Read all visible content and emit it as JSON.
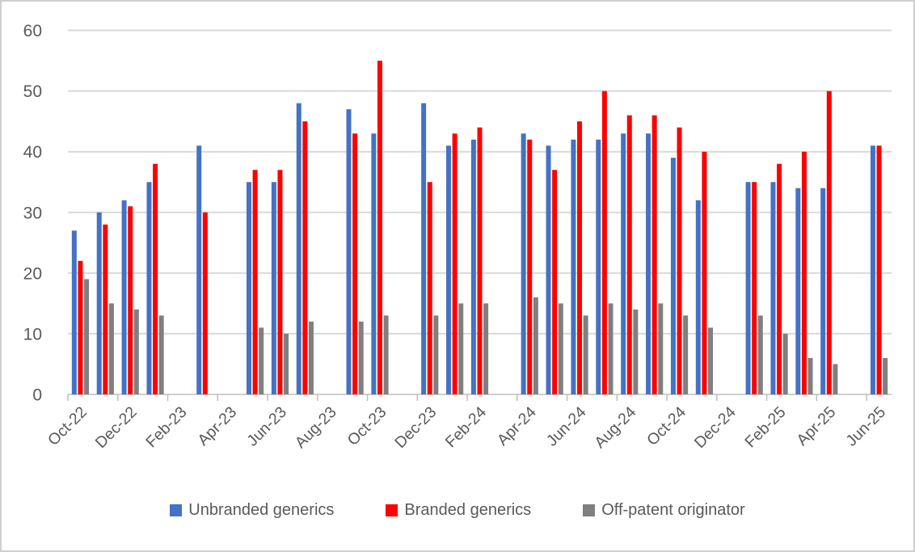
{
  "chart_data": {
    "type": "bar",
    "title": "",
    "xlabel": "",
    "ylabel": "",
    "categories": [
      "Oct-22",
      "Nov-22",
      "Dec-22",
      "Jan-23",
      "Feb-23",
      "Mar-23",
      "Apr-23",
      "May-23",
      "Jun-23",
      "Jul-23",
      "Aug-23",
      "Sep-23",
      "Oct-23",
      "Nov-23",
      "Dec-23",
      "Jan-24",
      "Feb-24",
      "Mar-24",
      "Apr-24",
      "May-24",
      "Jun-24",
      "Jul-24",
      "Aug-24",
      "Sep-24",
      "Oct-24",
      "Nov-24",
      "Dec-24",
      "Jan-25",
      "Feb-25",
      "Mar-25",
      "Apr-25",
      "May-25",
      "Jun-25"
    ],
    "x_tick_labels": [
      "Oct-22",
      "Dec-22",
      "Feb-23",
      "Apr-23",
      "Jun-23",
      "Aug-23",
      "Oct-23",
      "Dec-23",
      "Feb-24",
      "Apr-24",
      "Jun-24",
      "Aug-24",
      "Oct-24",
      "Dec-24",
      "Feb-25",
      "Apr-25",
      "Jun-25"
    ],
    "x_label_interval": 2,
    "y_ticks": [
      0,
      10,
      20,
      30,
      40,
      50,
      60
    ],
    "ylim": [
      0,
      60
    ],
    "grid": true,
    "legend_position": "bottom",
    "axis_text_color": "#595959",
    "gridline_color": "#D9D9D9",
    "axis_line_color": "#BFBFBF",
    "series": [
      {
        "name": "Unbranded generics",
        "color": "#4472C4",
        "values": [
          27,
          30,
          32,
          35,
          null,
          41,
          null,
          35,
          35,
          48,
          null,
          47,
          43,
          null,
          48,
          41,
          42,
          null,
          43,
          41,
          42,
          42,
          43,
          43,
          39,
          32,
          null,
          35,
          35,
          34,
          34,
          null,
          41
        ]
      },
      {
        "name": "Branded generics",
        "color": "#FF0000",
        "values": [
          22,
          28,
          31,
          38,
          null,
          30,
          null,
          37,
          37,
          45,
          null,
          43,
          55,
          null,
          35,
          43,
          44,
          null,
          42,
          37,
          45,
          50,
          46,
          46,
          44,
          40,
          null,
          35,
          38,
          40,
          50,
          null,
          41
        ]
      },
      {
        "name": "Off-patent originator",
        "color": "#7F7F7F",
        "values": [
          19,
          15,
          14,
          13,
          null,
          null,
          null,
          11,
          10,
          12,
          null,
          12,
          13,
          null,
          13,
          15,
          15,
          null,
          16,
          15,
          13,
          15,
          14,
          15,
          13,
          11,
          null,
          13,
          10,
          6,
          5,
          null,
          6
        ]
      }
    ]
  }
}
